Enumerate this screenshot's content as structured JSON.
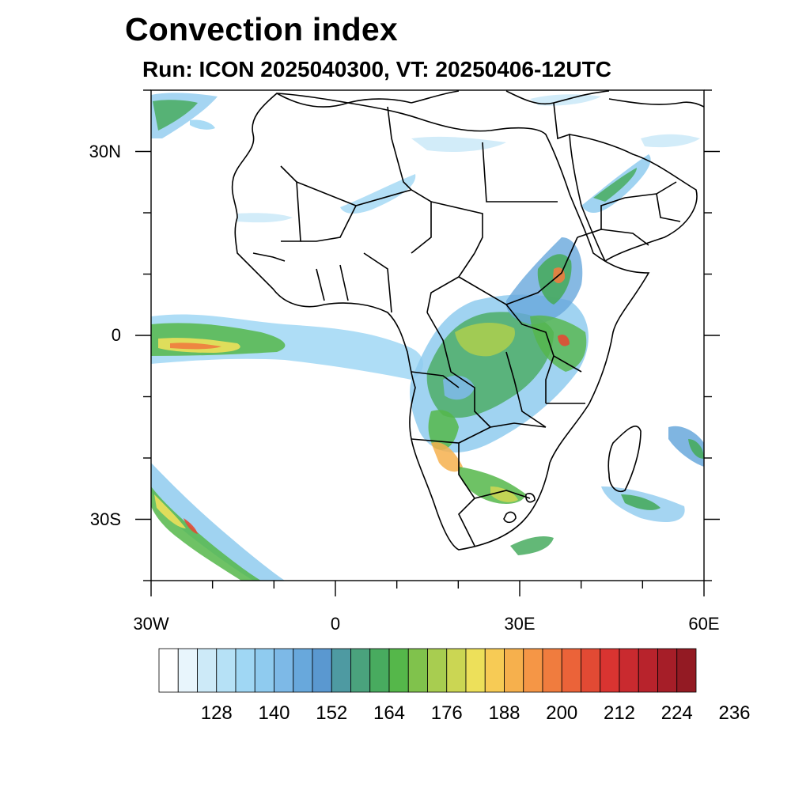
{
  "title": "Convection index",
  "subtitle": "Run: ICON 2025040300,  VT: 20250406-12UTC",
  "map": {
    "projection": "cylindrical-equidistant",
    "lon_range": [
      -30,
      60
    ],
    "lat_range": [
      -40,
      40
    ],
    "lat_labels": [
      {
        "text": "30N",
        "lat": 30
      },
      {
        "text": "0",
        "lat": 0
      },
      {
        "text": "30S",
        "lat": -30
      }
    ],
    "lon_labels": [
      {
        "text": "30W",
        "lon": -30
      },
      {
        "text": "0",
        "lon": 0
      },
      {
        "text": "30E",
        "lon": 30
      },
      {
        "text": "60E",
        "lon": 60
      }
    ],
    "coastline_color": "#000000",
    "background": "#ffffff"
  },
  "colorbar": {
    "labels": [
      "128",
      "140",
      "152",
      "164",
      "176",
      "188",
      "200",
      "212",
      "224",
      "236"
    ],
    "colors": [
      "#ffffff",
      "#e8f5fc",
      "#cdeaf8",
      "#b6e1f6",
      "#a0d7f4",
      "#8fcbef",
      "#7db9e7",
      "#68a8dc",
      "#5a98d0",
      "#4e9aa2",
      "#4aa27d",
      "#48ab5f",
      "#55b74a",
      "#80c24c",
      "#a8cd50",
      "#cbd653",
      "#ede05a",
      "#f7cb55",
      "#f6b04d",
      "#f59646",
      "#f07c3e",
      "#eb6339",
      "#e24a34",
      "#d93431",
      "#c92a2f",
      "#b8232c",
      "#a61e28",
      "#931a23"
    ]
  }
}
